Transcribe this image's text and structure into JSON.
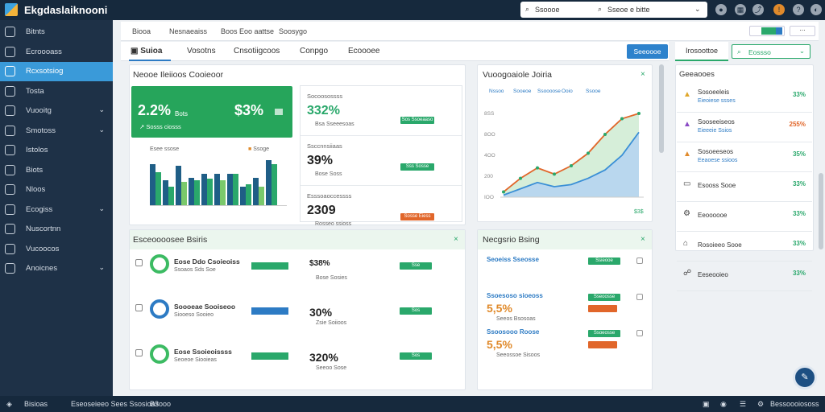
{
  "app": {
    "title": "Ekgdaslaiknooni"
  },
  "topbar": {
    "search1": "Ssoooe",
    "search2": "Sseoe e bitte"
  },
  "sidebar": {
    "items": [
      {
        "label": "Bitnts",
        "chev": ""
      },
      {
        "label": "Ecroooass",
        "chev": ""
      },
      {
        "label": "Rcxsotsiog",
        "chev": ""
      },
      {
        "label": "Tosta",
        "chev": ""
      },
      {
        "label": "Vuooitg",
        "chev": "⌄"
      },
      {
        "label": "Smotoss",
        "chev": "⌄"
      },
      {
        "label": "Istolos",
        "chev": ""
      },
      {
        "label": "Biots",
        "chev": ""
      },
      {
        "label": "Nloos",
        "chev": ""
      },
      {
        "label": "Ecogiss",
        "chev": "⌄"
      },
      {
        "label": "Nuscortnn",
        "chev": ""
      },
      {
        "label": "Vucoocos",
        "chev": ""
      },
      {
        "label": "Anoicnes",
        "chev": "⌄"
      }
    ]
  },
  "subnav": {
    "items": [
      "Biooa",
      "Nesnaeaiss",
      "Boos Eoo aattse",
      "Soosygo"
    ]
  },
  "tabs": {
    "items": [
      "Suioa",
      "Vosotns",
      "Cnsotiigcoos",
      "Conpgo",
      "Ecoooee"
    ],
    "button": "Seeoooe",
    "filter": "Irosoottoe",
    "dropdown": "Eossso"
  },
  "panel1": {
    "title": "Neooe Ileiioos Cooieoor",
    "big1": "2.2%",
    "sub1": "Bots",
    "big2": "$3%",
    "card_note": "Sosss ciosss",
    "legend": "Esee ssose",
    "legend2": "Ssoge"
  },
  "panel2": {
    "rows": [
      {
        "label": "Socoosossss",
        "value": "332%",
        "note": "Bsa Sseeesoas",
        "pill": "Sos Ssoeaaso"
      },
      {
        "label": "Ssccnnsiiaas",
        "value": "39%",
        "note": "Bose Soss",
        "pill": "Sss Sosse"
      },
      {
        "label": "Esssoaoccessss",
        "value": "2309",
        "note": "Rosseo ssioss",
        "pill": "Sosse Eiess"
      }
    ]
  },
  "panel3": {
    "title": "Vuoogoaiole Joiria",
    "legend": [
      "Nssoo",
      "Sooeoe",
      "Ssoooose",
      "Ooio",
      "Ssooe"
    ],
    "footer": "$3$",
    "yaxis": [
      "8SS",
      "8OO",
      "4OO",
      "200",
      "IOO"
    ]
  },
  "panel4": {
    "title": "Esceoooosee Bsiris",
    "rows": [
      {
        "label": "Eose Ddo Csoieoiss",
        "sub": "Ssoaos Sds Soe",
        "pct": "$38%",
        "note": "Bose Sosies",
        "pill": "Sse"
      },
      {
        "label": "Soooeae Sooiseoo",
        "sub": "Siooeso Sooieo",
        "pct": "30%",
        "note": "Zsie Soiioos",
        "pill": "Sos"
      },
      {
        "label": "Eose Ssoieoissss",
        "sub": "Seoeoe Siooieas",
        "pct": "320%",
        "note": "Seeoo Sose",
        "pill": "Sos"
      }
    ]
  },
  "panel5": {
    "title": "Necgsrio Bsing",
    "rows": [
      {
        "label": "Seoeiss Sseosse",
        "value": "",
        "note": "",
        "pill": "Ssieooe"
      },
      {
        "label": "Ssoesoso sioeoss",
        "value": "5,5%",
        "note": "Seeos Bsosoas",
        "pill": "Sseoosse"
      },
      {
        "label": "Ssoosooo Roose",
        "value": "5,5%",
        "note": "Seeossoe Sisoos",
        "pill": "Ssoeosse"
      }
    ]
  },
  "right": {
    "title": "Geeaooes",
    "rows": [
      {
        "label": "Sosoeeleis",
        "sub": "Eieoiese ssses",
        "pct": "33%",
        "ic": "▲"
      },
      {
        "label": "Sooseeiseos",
        "sub": "Eieeeie Ssios",
        "pct": "255%",
        "ic": "▲"
      },
      {
        "label": "Sosoeeseos",
        "sub": "Eeaoese ssioos",
        "pct": "35%",
        "ic": "▲"
      },
      {
        "label": "Esooss Sooe",
        "sub": "",
        "pct": "33%",
        "ic": "▭"
      },
      {
        "label": "Eeoooooe",
        "sub": "",
        "pct": "33%",
        "ic": "⚙"
      },
      {
        "label": "Rosoieeo Sooe",
        "sub": "",
        "pct": "33%",
        "ic": "⌂"
      },
      {
        "label": "Eeseooieo",
        "sub": "",
        "pct": "33%",
        "ic": "☍"
      }
    ]
  },
  "footer": {
    "left": "Bisioas",
    "center": "Eseoseieeo Sees Ssosioas",
    "right_center": "B3ooo",
    "right": "Bessoooiososs"
  },
  "chart_data": {
    "type": "bar",
    "categories": [
      "1",
      "2",
      "3",
      "4",
      "5",
      "6",
      "7",
      "8",
      "9",
      "10"
    ],
    "series": [
      {
        "values": [
          62,
          38,
          60,
          42,
          48,
          48,
          48,
          28,
          42,
          68
        ]
      },
      {
        "values": [
          50,
          28,
          35,
          38,
          40,
          38,
          48,
          32,
          28,
          62
        ]
      }
    ]
  },
  "line_data": {
    "series1": [
      5,
      18,
      28,
      22,
      30,
      42,
      60,
      75,
      80
    ],
    "series2": [
      2,
      8,
      14,
      10,
      12,
      18,
      26,
      40,
      62
    ]
  },
  "colors": {
    "green": "#26a55b",
    "blue": "#2d7bc4",
    "orange": "#e1662a",
    "dark": "#16293d"
  }
}
